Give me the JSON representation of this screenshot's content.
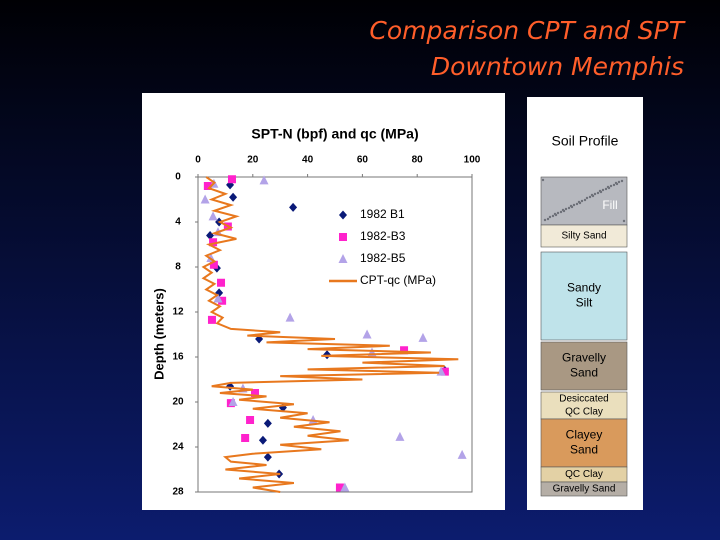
{
  "header": {
    "title_lines": [
      "Comparison CPT and SPT",
      "Downtown Memphis"
    ]
  },
  "chart_data": {
    "type": "scatter",
    "title": "SPT-N (bpf) and qc (MPa)",
    "y_label": "Depth (meters)",
    "xlim": [
      0,
      100
    ],
    "xticks": [
      0,
      20,
      40,
      60,
      80,
      100
    ],
    "ylim": [
      0,
      28
    ],
    "yticks": [
      0,
      4,
      8,
      12,
      16,
      20,
      24,
      28
    ],
    "y_inverted": true,
    "grid": false,
    "legend": "upper right",
    "series": [
      {
        "name": "1982 B1",
        "color": "#0a1a78",
        "marker": "diamond",
        "x": [
          11.7,
          12.8,
          34.7,
          7.7,
          4.4,
          6.9,
          7.7,
          22.3,
          47.1,
          90.1,
          11.7,
          31.0,
          25.5,
          23.7,
          25.5,
          29.6
        ],
        "y": [
          0.7,
          1.8,
          2.7,
          4.0,
          5.2,
          8.1,
          10.3,
          14.4,
          15.8,
          17.2,
          18.6,
          20.5,
          21.9,
          23.4,
          24.9,
          26.4
        ]
      },
      {
        "name": "1982-B3",
        "color": "#ff22cc",
        "marker": "square",
        "x": [
          12.4,
          3.6,
          10.9,
          5.5,
          5.8,
          8.4,
          8.8,
          5.1,
          75.2,
          90.1,
          20.8,
          12.0,
          19.0,
          17.2,
          51.8
        ],
        "y": [
          0.2,
          0.8,
          4.4,
          5.8,
          7.8,
          9.4,
          11.0,
          12.7,
          15.4,
          17.3,
          19.2,
          20.1,
          21.6,
          23.2,
          27.6
        ]
      },
      {
        "name": "1982-B5",
        "color": "#b3a3e8",
        "marker": "triangle",
        "x": [
          24.1,
          5.8,
          2.6,
          5.5,
          7.3,
          4.7,
          7.3,
          33.6,
          61.7,
          82.1,
          63.5,
          88.7,
          16.4,
          12.8,
          42.0,
          73.7,
          96.4,
          53.6
        ],
        "y": [
          0.3,
          0.6,
          2.0,
          3.5,
          4.9,
          7.2,
          10.8,
          12.5,
          14.0,
          14.3,
          15.6,
          17.3,
          18.8,
          20.0,
          21.6,
          23.1,
          24.7,
          27.6
        ]
      },
      {
        "name": "CPT-qc (MPa)",
        "color": "#e8781e",
        "marker": "line",
        "x": [
          3,
          6,
          4,
          10,
          5,
          12,
          6,
          14,
          8,
          12,
          6,
          14,
          4,
          8,
          3,
          6,
          2,
          5,
          2,
          6,
          3,
          7,
          4,
          8,
          5,
          9,
          7,
          12,
          30,
          18,
          50,
          25,
          70,
          40,
          85,
          45,
          95,
          60,
          90,
          40,
          88,
          30,
          60,
          12,
          5,
          20,
          8,
          25,
          15,
          35,
          20,
          40,
          30,
          48,
          35,
          52,
          40,
          55,
          30,
          45,
          20,
          10,
          12,
          25,
          10,
          30,
          15,
          35,
          20,
          30
        ],
        "y": [
          0,
          0.5,
          1,
          1.5,
          2,
          2.5,
          3,
          3.5,
          4,
          4.5,
          5,
          5.5,
          6,
          6.5,
          7,
          7.5,
          8,
          8.5,
          9,
          9.5,
          10,
          10.5,
          11,
          11.5,
          12,
          12.5,
          13,
          13.5,
          13.8,
          14.1,
          14.4,
          14.7,
          15.0,
          15.3,
          15.6,
          15.9,
          16.2,
          16.5,
          16.8,
          17.1,
          17.4,
          17.7,
          18.0,
          18.3,
          18.6,
          18.9,
          19.2,
          19.5,
          19.8,
          20.2,
          20.6,
          21.0,
          21.4,
          21.8,
          22.2,
          22.6,
          23.0,
          23.4,
          23.8,
          24.2,
          24.6,
          24.9,
          25.3,
          25.6,
          26.0,
          26.4,
          26.8,
          27.2,
          27.6,
          28
        ]
      }
    ]
  },
  "soil_profile": {
    "title": "Soil Profile",
    "layers": [
      {
        "lines": [
          "Fill"
        ]
      },
      {
        "lines": [
          "Silty Sand"
        ]
      },
      {
        "lines": [
          "Sandy",
          "Silt"
        ]
      },
      {
        "lines": [
          "Gravelly",
          "Sand"
        ]
      },
      {
        "lines": [
          "Desiccated",
          "QC Clay"
        ]
      },
      {
        "lines": [
          "Clayey",
          "Sand"
        ]
      },
      {
        "lines": [
          "QC Clay"
        ]
      },
      {
        "lines": [
          "Gravelly Sand"
        ]
      }
    ]
  }
}
